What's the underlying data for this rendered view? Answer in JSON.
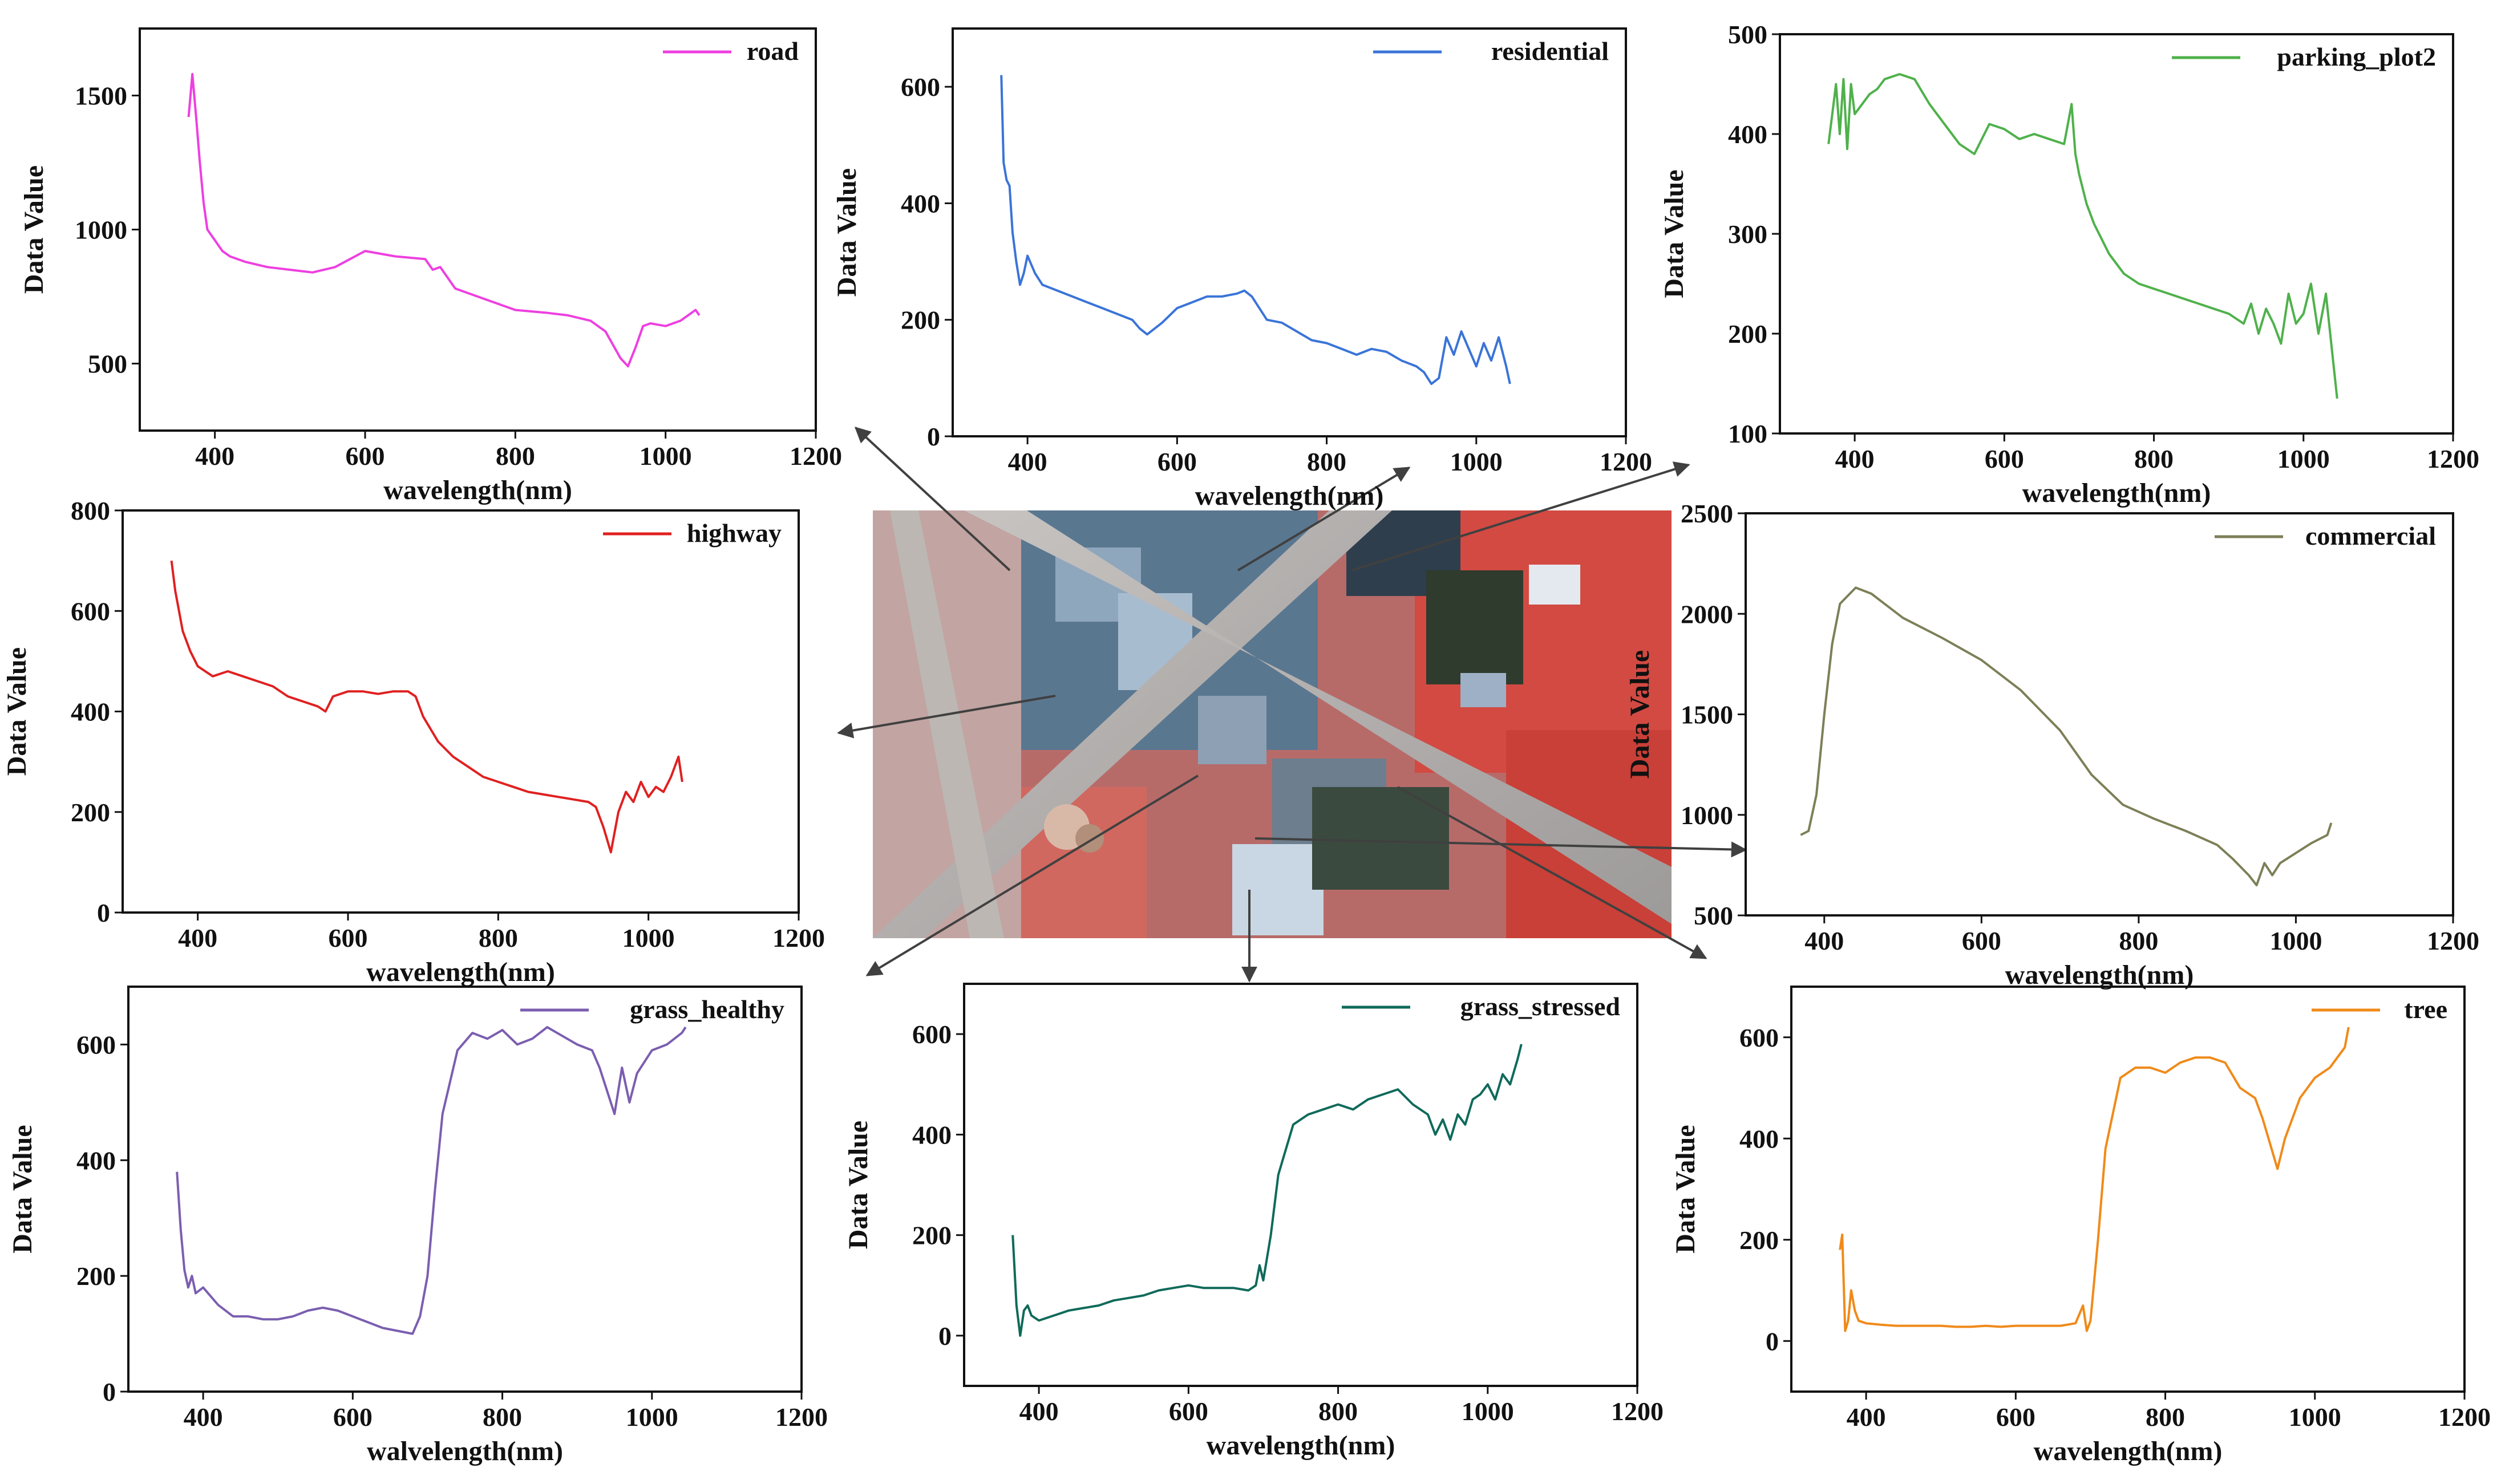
{
  "satellite_image": {
    "name": "false-color aerial scene"
  },
  "chart_data": [
    {
      "id": "road",
      "type": "line",
      "color": "#ee3fe0",
      "title": "",
      "xlabel": "wavelength(nm)",
      "ylabel": "Data Value",
      "xlim": [
        300,
        1200
      ],
      "ylim": [
        250,
        1750
      ],
      "xticks": [
        400,
        600,
        800,
        1000,
        1200
      ],
      "yticks": [
        500,
        1000,
        1500
      ],
      "legend": "top-right",
      "series": [
        {
          "name": "road",
          "x": [
            365,
            370,
            375,
            380,
            385,
            390,
            400,
            410,
            420,
            440,
            470,
            500,
            530,
            560,
            600,
            640,
            680,
            690,
            700,
            720,
            760,
            800,
            840,
            870,
            900,
            920,
            930,
            940,
            950,
            960,
            970,
            980,
            1000,
            1020,
            1040,
            1045
          ],
          "y": [
            1420,
            1580,
            1420,
            1250,
            1100,
            1000,
            960,
            920,
            900,
            880,
            860,
            850,
            840,
            860,
            920,
            900,
            890,
            850,
            860,
            780,
            740,
            700,
            690,
            680,
            660,
            620,
            570,
            520,
            490,
            560,
            640,
            650,
            640,
            660,
            700,
            680
          ]
        }
      ]
    },
    {
      "id": "residential",
      "type": "line",
      "color": "#3a74d8",
      "title": "",
      "xlabel": "wavelength(nm)",
      "ylabel": "Data Value",
      "xlim": [
        300,
        1200
      ],
      "ylim": [
        0,
        700
      ],
      "xticks": [
        400,
        600,
        800,
        1000,
        1200
      ],
      "yticks": [
        0,
        200,
        400,
        600
      ],
      "legend": "top-right",
      "series": [
        {
          "name": "residential",
          "x": [
            365,
            368,
            372,
            376,
            380,
            385,
            390,
            395,
            400,
            410,
            420,
            440,
            460,
            480,
            500,
            520,
            540,
            550,
            560,
            580,
            600,
            620,
            640,
            660,
            680,
            690,
            700,
            720,
            740,
            760,
            780,
            800,
            820,
            840,
            860,
            880,
            900,
            920,
            930,
            940,
            950,
            960,
            970,
            980,
            990,
            1000,
            1010,
            1020,
            1030,
            1040,
            1045
          ],
          "y": [
            620,
            470,
            440,
            430,
            350,
            300,
            260,
            280,
            310,
            280,
            260,
            250,
            240,
            230,
            220,
            210,
            200,
            185,
            175,
            195,
            220,
            230,
            240,
            240,
            245,
            250,
            240,
            200,
            195,
            180,
            165,
            160,
            150,
            140,
            150,
            145,
            130,
            120,
            110,
            90,
            100,
            170,
            140,
            180,
            150,
            120,
            160,
            130,
            170,
            120,
            90
          ]
        }
      ]
    },
    {
      "id": "parking_plot2",
      "type": "line",
      "color": "#4fb14b",
      "title": "",
      "xlabel": "wavelength(nm)",
      "ylabel": "Data Value",
      "xlim": [
        300,
        1200
      ],
      "ylim": [
        100,
        500
      ],
      "xticks": [
        400,
        600,
        800,
        1000,
        1200
      ],
      "yticks": [
        100,
        200,
        300,
        400,
        500
      ],
      "legend": "top-right",
      "series": [
        {
          "name": "parking_plot2",
          "x": [
            365,
            370,
            375,
            380,
            385,
            390,
            395,
            400,
            410,
            420,
            430,
            440,
            460,
            480,
            500,
            520,
            540,
            560,
            580,
            600,
            620,
            640,
            660,
            680,
            690,
            695,
            700,
            710,
            720,
            740,
            760,
            780,
            800,
            820,
            840,
            860,
            880,
            900,
            920,
            930,
            940,
            950,
            960,
            970,
            980,
            990,
            1000,
            1010,
            1020,
            1030,
            1040,
            1045
          ],
          "y": [
            390,
            420,
            450,
            400,
            455,
            385,
            450,
            420,
            430,
            440,
            445,
            455,
            460,
            455,
            430,
            410,
            390,
            380,
            410,
            405,
            395,
            400,
            395,
            390,
            430,
            380,
            360,
            330,
            310,
            280,
            260,
            250,
            245,
            240,
            235,
            230,
            225,
            220,
            210,
            230,
            200,
            225,
            210,
            190,
            240,
            210,
            220,
            250,
            200,
            240,
            170,
            135
          ]
        }
      ]
    },
    {
      "id": "highway",
      "type": "line",
      "color": "#e02020",
      "title": "",
      "xlabel": "wavelength(nm)",
      "ylabel": "Data Value",
      "xlim": [
        300,
        1200
      ],
      "ylim": [
        0,
        800
      ],
      "xticks": [
        400,
        600,
        800,
        1000,
        1200
      ],
      "yticks": [
        0,
        200,
        400,
        600,
        800
      ],
      "legend": "top-right",
      "series": [
        {
          "name": "highway",
          "x": [
            365,
            370,
            375,
            380,
            390,
            400,
            410,
            420,
            440,
            460,
            480,
            500,
            520,
            540,
            560,
            570,
            580,
            600,
            620,
            640,
            660,
            680,
            690,
            700,
            720,
            740,
            760,
            780,
            800,
            820,
            840,
            860,
            880,
            900,
            920,
            930,
            940,
            950,
            960,
            970,
            980,
            990,
            1000,
            1010,
            1020,
            1030,
            1040,
            1045
          ],
          "y": [
            700,
            640,
            600,
            560,
            520,
            490,
            480,
            470,
            480,
            470,
            460,
            450,
            430,
            420,
            410,
            400,
            430,
            440,
            440,
            435,
            440,
            440,
            430,
            390,
            340,
            310,
            290,
            270,
            260,
            250,
            240,
            235,
            230,
            225,
            220,
            210,
            170,
            120,
            200,
            240,
            220,
            260,
            230,
            250,
            240,
            270,
            310,
            260
          ]
        }
      ]
    },
    {
      "id": "commercial",
      "type": "line",
      "color": "#7d7f57",
      "title": "",
      "xlabel": "wavelength(nm)",
      "ylabel": "Data Value",
      "xlim": [
        300,
        1200
      ],
      "ylim": [
        500,
        2500
      ],
      "xticks": [
        400,
        600,
        800,
        1000,
        1200
      ],
      "yticks": [
        500,
        1000,
        1500,
        2000,
        2500
      ],
      "legend": "top-right",
      "series": [
        {
          "name": "commercial",
          "x": [
            370,
            380,
            390,
            400,
            410,
            420,
            440,
            460,
            480,
            500,
            550,
            600,
            650,
            700,
            740,
            780,
            820,
            860,
            900,
            920,
            940,
            950,
            960,
            970,
            980,
            1000,
            1020,
            1040,
            1045
          ],
          "y": [
            900,
            920,
            1100,
            1500,
            1850,
            2050,
            2130,
            2100,
            2040,
            1980,
            1880,
            1770,
            1620,
            1420,
            1200,
            1050,
            980,
            920,
            850,
            780,
            700,
            650,
            760,
            700,
            760,
            810,
            860,
            900,
            960
          ]
        }
      ]
    },
    {
      "id": "grass_healthy",
      "type": "line",
      "color": "#7b5eb0",
      "title": "",
      "xlabel": "walvelength(nm)",
      "ylabel": "Data Value",
      "xlim": [
        300,
        1200
      ],
      "ylim": [
        0,
        700
      ],
      "xticks": [
        400,
        600,
        800,
        1000,
        1200
      ],
      "yticks": [
        0,
        200,
        400,
        600
      ],
      "legend": "top-right",
      "series": [
        {
          "name": "grass_healthy",
          "x": [
            365,
            370,
            375,
            380,
            385,
            390,
            400,
            420,
            440,
            460,
            480,
            500,
            520,
            540,
            560,
            580,
            600,
            620,
            640,
            660,
            680,
            690,
            700,
            710,
            720,
            740,
            760,
            780,
            800,
            820,
            840,
            860,
            880,
            900,
            920,
            930,
            940,
            950,
            960,
            970,
            980,
            1000,
            1020,
            1040,
            1045
          ],
          "y": [
            380,
            280,
            210,
            180,
            200,
            170,
            180,
            150,
            130,
            130,
            125,
            125,
            130,
            140,
            145,
            140,
            130,
            120,
            110,
            105,
            100,
            130,
            200,
            350,
            480,
            590,
            620,
            610,
            625,
            600,
            610,
            630,
            615,
            600,
            590,
            560,
            520,
            480,
            560,
            500,
            550,
            590,
            600,
            620,
            630
          ]
        }
      ]
    },
    {
      "id": "grass_stressed",
      "type": "line",
      "color": "#0f6a5a",
      "title": "",
      "xlabel": "wavelength(nm)",
      "ylabel": "Data Value",
      "xlim": [
        300,
        1200
      ],
      "ylim": [
        -100,
        700
      ],
      "xticks": [
        400,
        600,
        800,
        1000,
        1200
      ],
      "yticks": [
        0,
        200,
        400,
        600
      ],
      "legend": "top-right",
      "series": [
        {
          "name": "grass_stressed",
          "x": [
            365,
            370,
            375,
            380,
            385,
            390,
            400,
            420,
            440,
            460,
            480,
            500,
            520,
            540,
            560,
            580,
            600,
            620,
            640,
            660,
            680,
            690,
            695,
            700,
            710,
            720,
            740,
            760,
            780,
            800,
            820,
            840,
            860,
            880,
            900,
            920,
            930,
            940,
            950,
            960,
            970,
            980,
            990,
            1000,
            1010,
            1020,
            1030,
            1040,
            1045
          ],
          "y": [
            200,
            60,
            0,
            50,
            60,
            40,
            30,
            40,
            50,
            55,
            60,
            70,
            75,
            80,
            90,
            95,
            100,
            95,
            95,
            95,
            90,
            100,
            140,
            110,
            200,
            320,
            420,
            440,
            450,
            460,
            450,
            470,
            480,
            490,
            460,
            440,
            400,
            430,
            390,
            440,
            420,
            470,
            480,
            500,
            470,
            520,
            500,
            550,
            580
          ]
        }
      ]
    },
    {
      "id": "tree",
      "type": "line",
      "color": "#f08a1a",
      "title": "",
      "xlabel": "wavelength(nm)",
      "ylabel": "Data Value",
      "xlim": [
        300,
        1200
      ],
      "ylim": [
        -100,
        700
      ],
      "xticks": [
        400,
        600,
        800,
        1000,
        1200
      ],
      "yticks": [
        0,
        200,
        400,
        600
      ],
      "legend": "top-right",
      "series": [
        {
          "name": "tree",
          "x": [
            365,
            368,
            372,
            376,
            380,
            385,
            390,
            400,
            420,
            440,
            460,
            480,
            500,
            520,
            540,
            560,
            580,
            600,
            620,
            640,
            660,
            680,
            690,
            695,
            700,
            710,
            720,
            740,
            760,
            780,
            800,
            820,
            840,
            860,
            880,
            900,
            920,
            930,
            940,
            950,
            960,
            980,
            1000,
            1020,
            1040,
            1045
          ],
          "y": [
            180,
            210,
            20,
            40,
            100,
            60,
            40,
            35,
            32,
            30,
            30,
            30,
            30,
            28,
            28,
            30,
            28,
            30,
            30,
            30,
            30,
            35,
            70,
            20,
            40,
            200,
            380,
            520,
            540,
            540,
            530,
            550,
            560,
            560,
            550,
            500,
            480,
            440,
            390,
            340,
            400,
            480,
            520,
            540,
            580,
            620
          ]
        }
      ]
    }
  ]
}
